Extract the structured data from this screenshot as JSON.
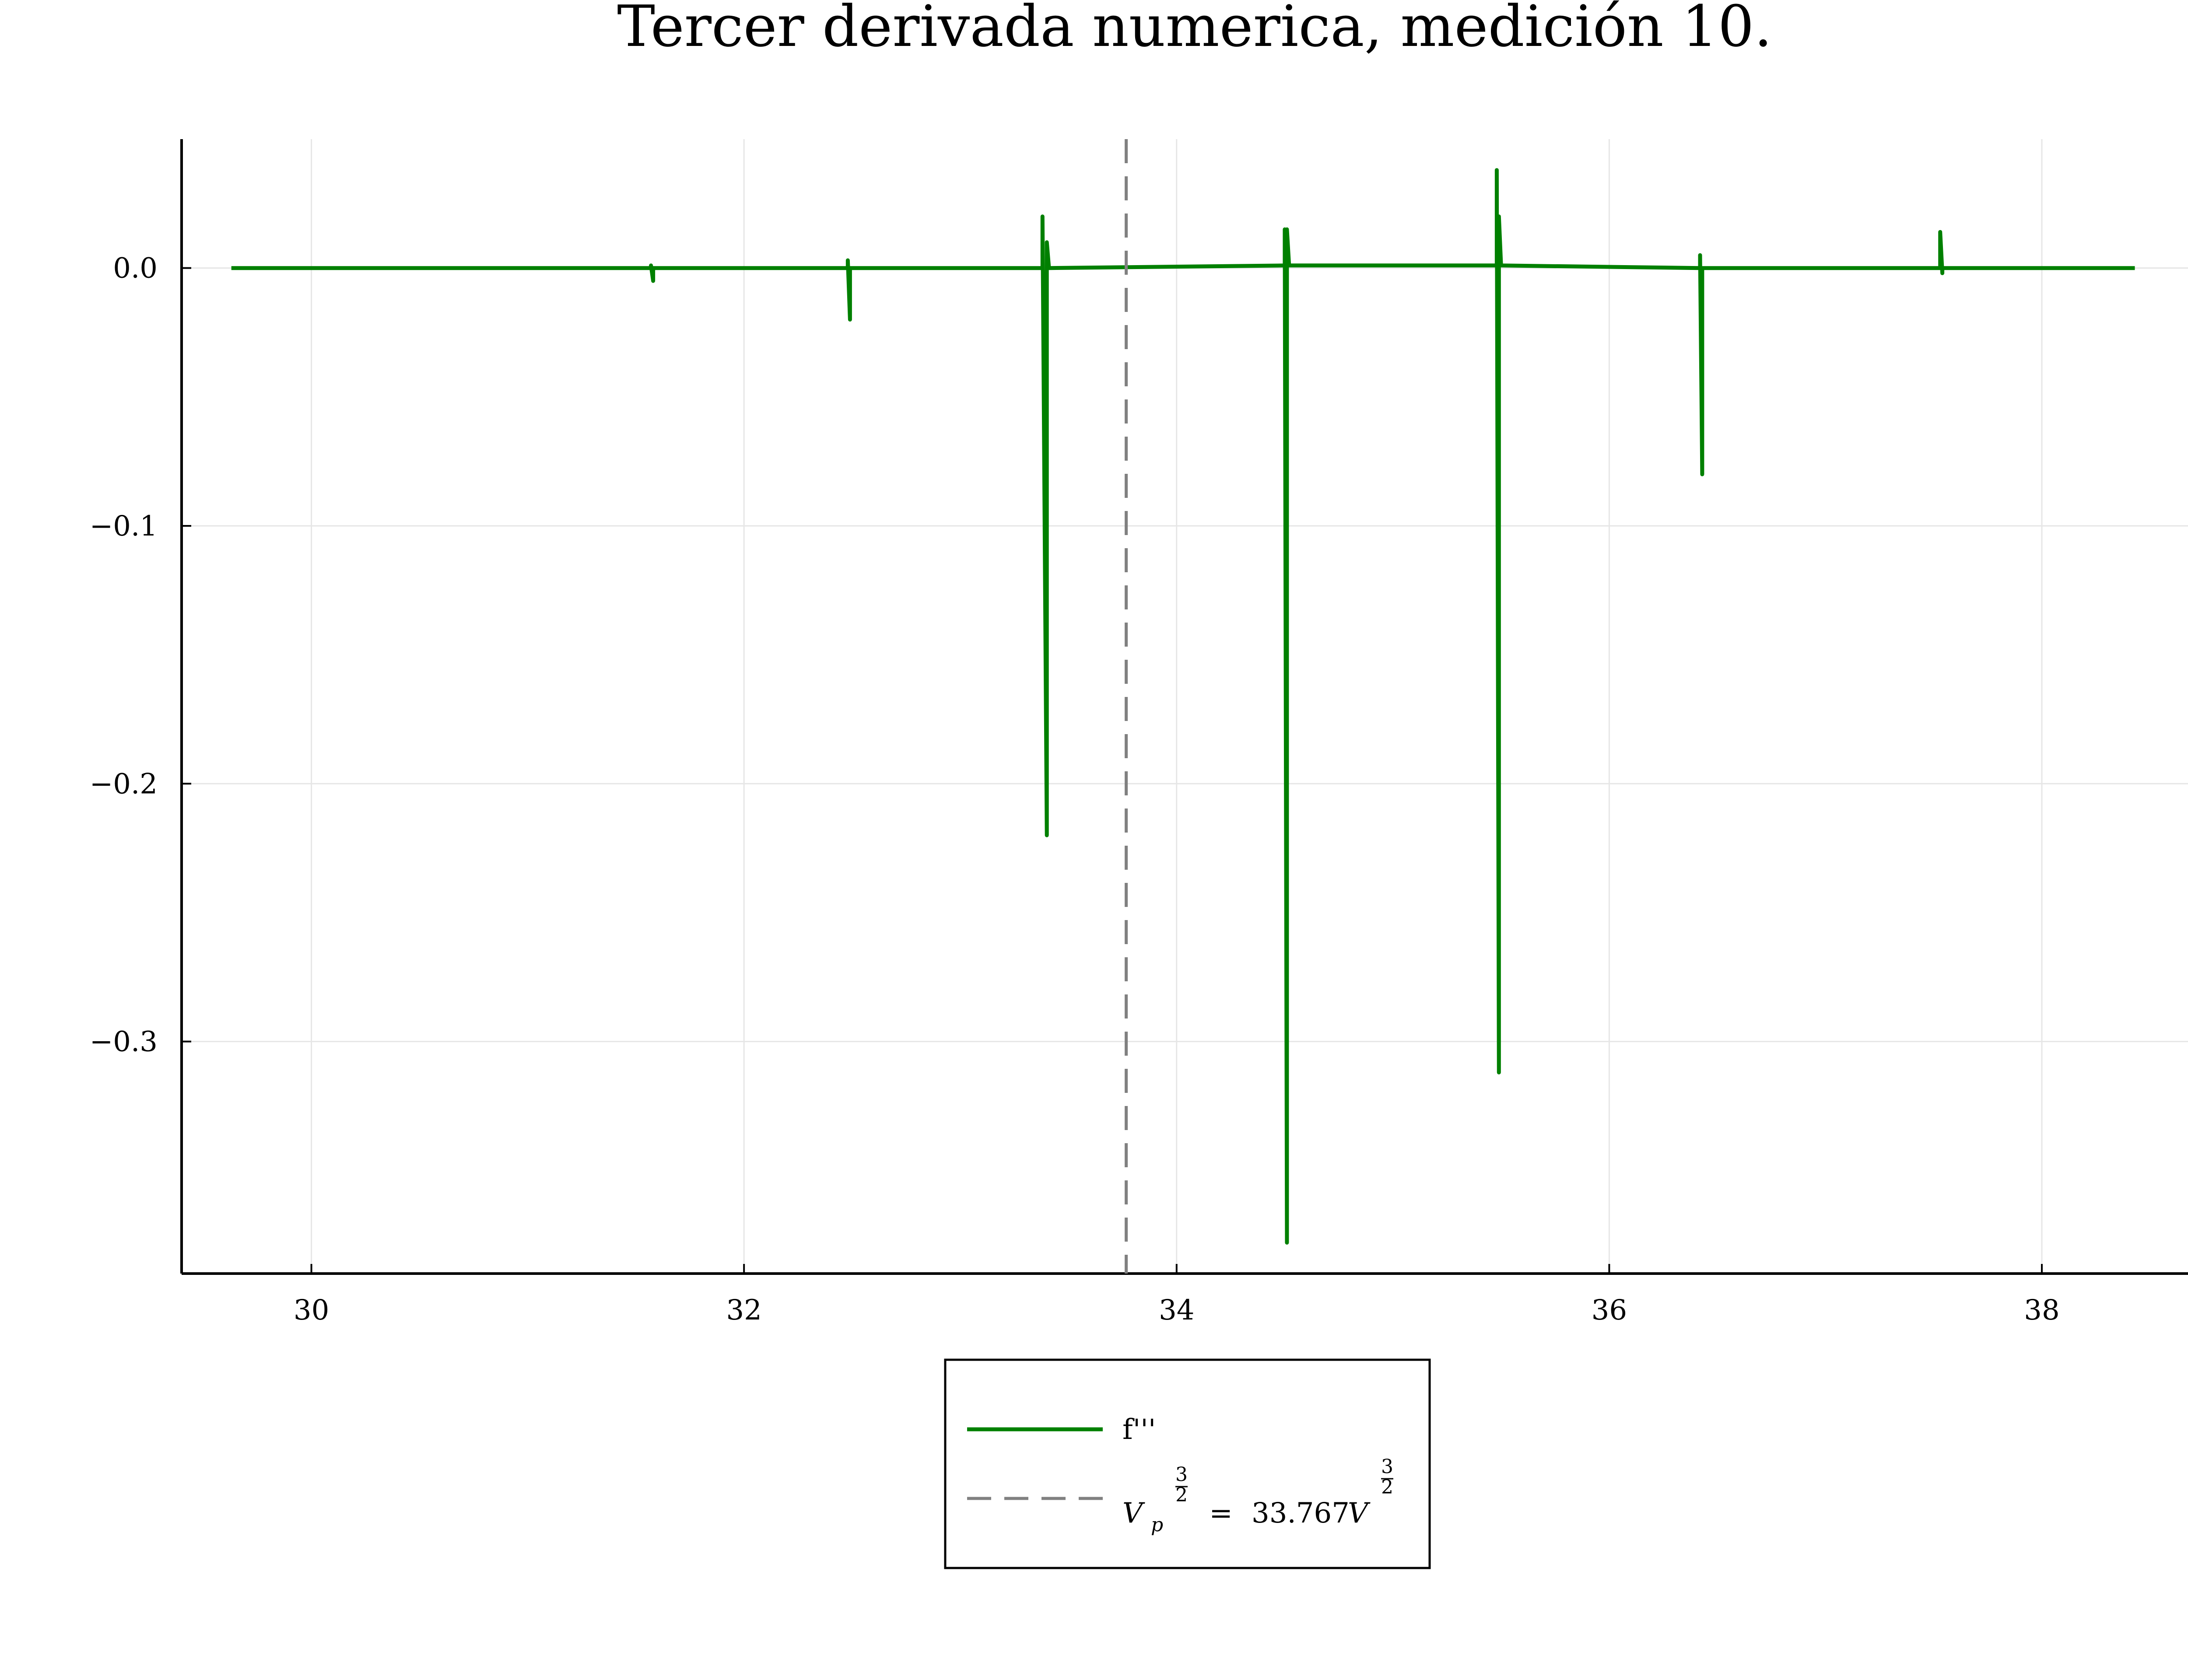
{
  "chart_data": {
    "type": "line",
    "title": "Tercer derivada numerica, medición 10.",
    "xlabel": "",
    "ylabel": "",
    "xlim": [
      29.4,
      38.7
    ],
    "ylim": [
      -0.39,
      0.05
    ],
    "x_ticks": [
      30,
      32,
      34,
      36,
      38
    ],
    "x_tick_labels": [
      "30",
      "32",
      "34",
      "36",
      "38"
    ],
    "y_ticks": [
      0.0,
      -0.1,
      -0.2,
      -0.3
    ],
    "y_tick_labels": [
      "0.0",
      "−0.1",
      "−0.2",
      "−0.3"
    ],
    "grid": true,
    "legend_position": "outside-bottom-center",
    "series": [
      {
        "name": "f'''",
        "color": "#008000",
        "style": "solid",
        "points": [
          [
            29.63,
            0.0
          ],
          [
            31.57,
            0.0
          ],
          [
            31.57,
            0.001
          ],
          [
            31.58,
            -0.005
          ],
          [
            31.58,
            0.0
          ],
          [
            32.48,
            0.0
          ],
          [
            32.48,
            0.003
          ],
          [
            32.49,
            -0.02
          ],
          [
            32.49,
            0.0
          ],
          [
            33.38,
            0.0
          ],
          [
            33.38,
            0.02
          ],
          [
            33.4,
            -0.22
          ],
          [
            33.4,
            0.01
          ],
          [
            33.41,
            0.0
          ],
          [
            34.5,
            0.001
          ],
          [
            34.5,
            0.015
          ],
          [
            34.51,
            -0.378
          ],
          [
            34.51,
            0.015
          ],
          [
            34.52,
            0.001
          ],
          [
            35.48,
            0.001
          ],
          [
            35.48,
            0.038
          ],
          [
            35.49,
            -0.312
          ],
          [
            35.49,
            0.02
          ],
          [
            35.5,
            0.001
          ],
          [
            36.42,
            0.0
          ],
          [
            36.42,
            0.005
          ],
          [
            36.43,
            -0.08
          ],
          [
            36.43,
            0.0
          ],
          [
            37.53,
            0.0
          ],
          [
            37.53,
            0.014
          ],
          [
            37.54,
            -0.002
          ],
          [
            37.54,
            0.0
          ],
          [
            38.43,
            0.0
          ]
        ]
      },
      {
        "name_parts": {
          "var": "V",
          "sub": "p",
          "exp_num": "3",
          "exp_den": "2",
          "equals": "=",
          "value": "33.767",
          "unit": "V"
        },
        "color": "#808080",
        "style": "dashed",
        "vline_x": 33.767
      }
    ]
  }
}
